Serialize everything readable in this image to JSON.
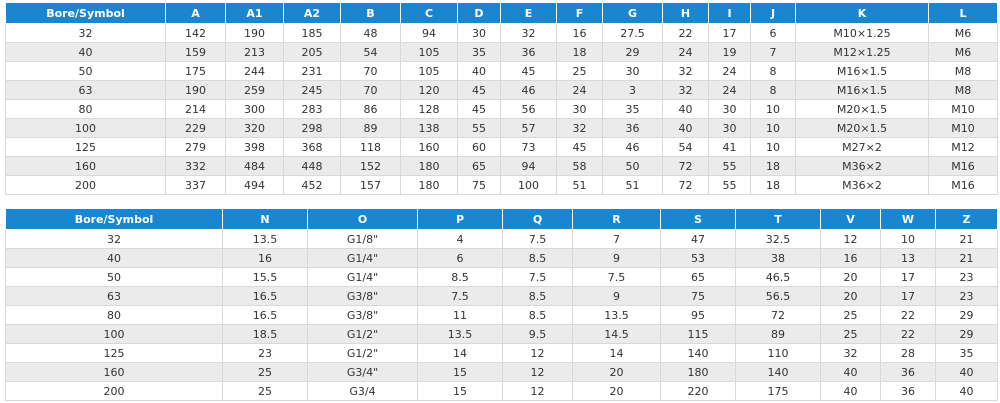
{
  "tables": [
    {
      "header": [
        "Bore/Symbol",
        "A",
        "A1",
        "A2",
        "B",
        "C",
        "D",
        "E",
        "F",
        "G",
        "H",
        "I",
        "J",
        "K",
        "L"
      ],
      "rows": [
        [
          "32",
          "142",
          "190",
          "185",
          "48",
          "94",
          "30",
          "32",
          "16",
          "27.5",
          "22",
          "17",
          "6",
          "M10×1.25",
          "M6"
        ],
        [
          "40",
          "159",
          "213",
          "205",
          "54",
          "105",
          "35",
          "36",
          "18",
          "29",
          "24",
          "19",
          "7",
          "M12×1.25",
          "M6"
        ],
        [
          "50",
          "175",
          "244",
          "231",
          "70",
          "105",
          "40",
          "45",
          "25",
          "30",
          "32",
          "24",
          "8",
          "M16×1.5",
          "M8"
        ],
        [
          "63",
          "190",
          "259",
          "245",
          "70",
          "120",
          "45",
          "46",
          "24",
          "3",
          "32",
          "24",
          "8",
          "M16×1.5",
          "M8"
        ],
        [
          "80",
          "214",
          "300",
          "283",
          "86",
          "128",
          "45",
          "56",
          "30",
          "35",
          "40",
          "30",
          "10",
          "M20×1.5",
          "M10"
        ],
        [
          "100",
          "229",
          "320",
          "298",
          "89",
          "138",
          "55",
          "57",
          "32",
          "36",
          "40",
          "30",
          "10",
          "M20×1.5",
          "M10"
        ],
        [
          "125",
          "279",
          "398",
          "368",
          "118",
          "160",
          "60",
          "73",
          "45",
          "46",
          "54",
          "41",
          "10",
          "M27×2",
          "M12"
        ],
        [
          "160",
          "332",
          "484",
          "448",
          "152",
          "180",
          "65",
          "94",
          "58",
          "50",
          "72",
          "55",
          "18",
          "M36×2",
          "M16"
        ],
        [
          "200",
          "337",
          "494",
          "452",
          "157",
          "180",
          "75",
          "100",
          "51",
          "51",
          "72",
          "55",
          "18",
          "M36×2",
          "M16"
        ]
      ]
    },
    {
      "header": [
        "Bore/Symbol",
        "N",
        "O",
        "P",
        "Q",
        "R",
        "S",
        "T",
        "V",
        "W",
        "Z"
      ],
      "rows": [
        [
          "32",
          "13.5",
          "G1/8\"",
          "4",
          "7.5",
          "7",
          "47",
          "32.5",
          "12",
          "10",
          "21"
        ],
        [
          "40",
          "16",
          "G1/4\"",
          "6",
          "8.5",
          "9",
          "53",
          "38",
          "16",
          "13",
          "21"
        ],
        [
          "50",
          "15.5",
          "G1/4\"",
          "8.5",
          "7.5",
          "7.5",
          "65",
          "46.5",
          "20",
          "17",
          "23"
        ],
        [
          "63",
          "16.5",
          "G3/8\"",
          "7.5",
          "8.5",
          "9",
          "75",
          "56.5",
          "20",
          "17",
          "23"
        ],
        [
          "80",
          "16.5",
          "G3/8\"",
          "11",
          "8.5",
          "13.5",
          "95",
          "72",
          "25",
          "22",
          "29"
        ],
        [
          "100",
          "18.5",
          "G1/2\"",
          "13.5",
          "9.5",
          "14.5",
          "115",
          "89",
          "25",
          "22",
          "29"
        ],
        [
          "125",
          "23",
          "G1/2\"",
          "14",
          "12",
          "14",
          "140",
          "110",
          "32",
          "28",
          "35"
        ],
        [
          "160",
          "25",
          "G3/4\"",
          "15",
          "12",
          "20",
          "180",
          "140",
          "40",
          "36",
          "40"
        ],
        [
          "200",
          "25",
          "G3/4",
          "15",
          "12",
          "20",
          "220",
          "175",
          "40",
          "36",
          "40"
        ]
      ]
    }
  ]
}
